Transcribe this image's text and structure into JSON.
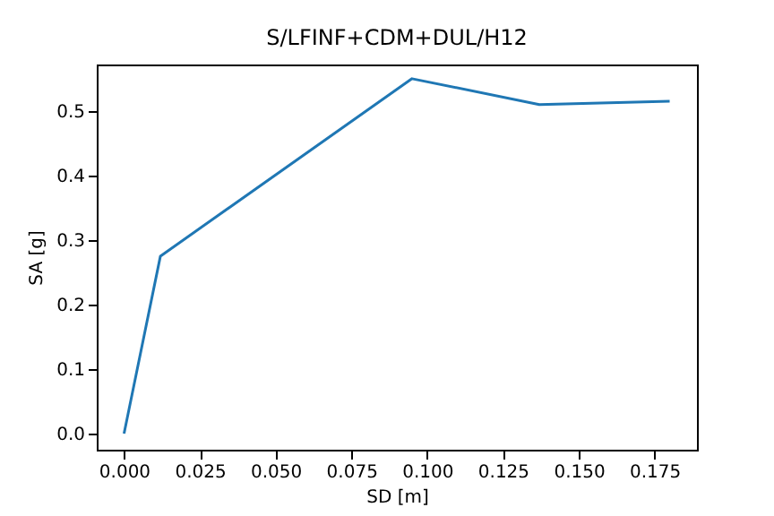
{
  "chart_data": {
    "type": "line",
    "title": "S/LFINF+CDM+DUL/H12",
    "xlabel": "SD [m]",
    "ylabel": "SA [g]",
    "x": [
      0,
      0.012,
      0.095,
      0.137,
      0.18
    ],
    "series": [
      {
        "color": "#1f77b4",
        "values": [
          0,
          0.275,
          0.55,
          0.51,
          0.515
        ]
      }
    ],
    "xlim": [
      -0.009,
      0.189
    ],
    "ylim": [
      -0.025,
      0.572
    ],
    "xticks": [
      {
        "value": 0,
        "label": "0.000"
      },
      {
        "value": 0.025,
        "label": "0.025"
      },
      {
        "value": 0.05,
        "label": "0.050"
      },
      {
        "value": 0.075,
        "label": "0.075"
      },
      {
        "value": 0.1,
        "label": "0.100"
      },
      {
        "value": 0.125,
        "label": "0.125"
      },
      {
        "value": 0.15,
        "label": "0.150"
      },
      {
        "value": 0.175,
        "label": "0.175"
      }
    ],
    "yticks": [
      {
        "value": 0,
        "label": "0.0"
      },
      {
        "value": 0.1,
        "label": "0.1"
      },
      {
        "value": 0.2,
        "label": "0.2"
      },
      {
        "value": 0.3,
        "label": "0.3"
      },
      {
        "value": 0.4,
        "label": "0.4"
      },
      {
        "value": 0.5,
        "label": "0.5"
      }
    ],
    "grid": false,
    "line_style": "solid"
  }
}
